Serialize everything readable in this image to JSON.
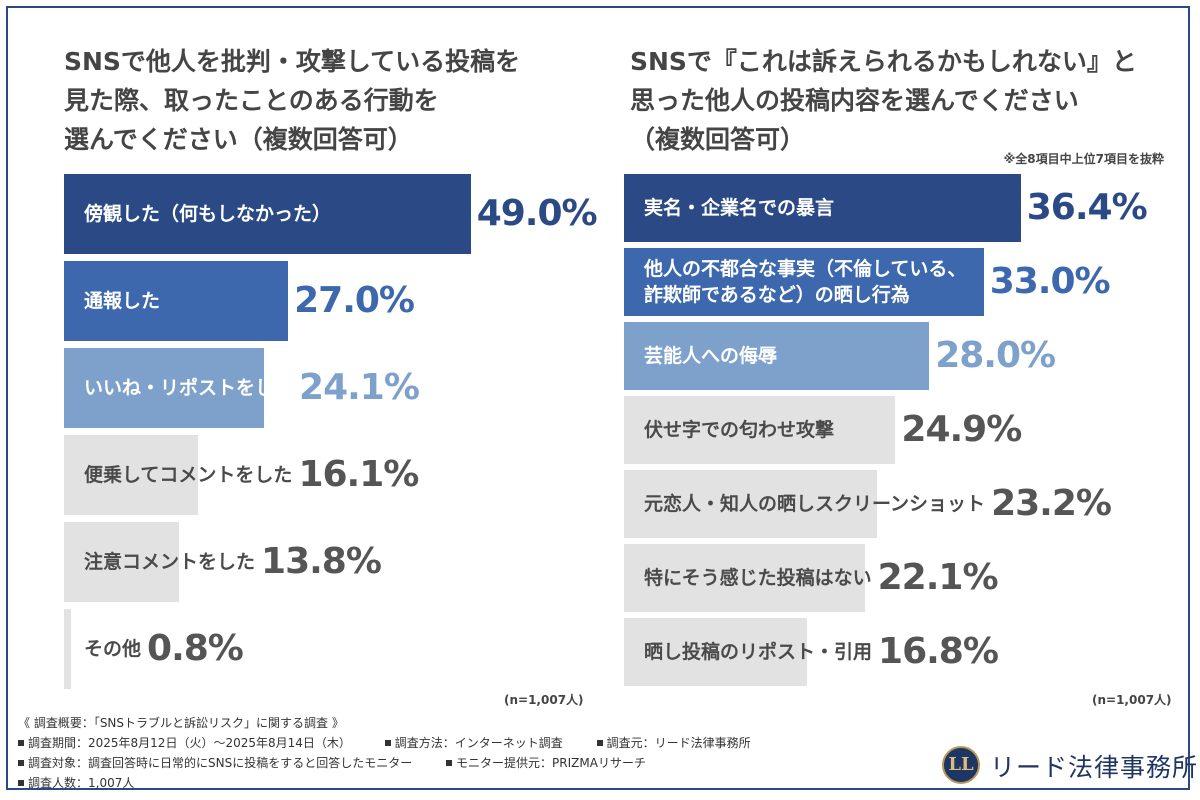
{
  "chart_data": [
    {
      "type": "bar",
      "orientation": "horizontal",
      "title_lines": [
        "SNSで他人を批判・攻撃している投稿を",
        "見た際、取ったことのある行動を",
        "選んでください（複数回答可）"
      ],
      "categories": [
        "傍観した（何もしなかった）",
        "通報した",
        "いいね・リポストをした",
        "便乗してコメントをした",
        "注意コメントをした",
        "その他"
      ],
      "values": [
        49.0,
        27.0,
        24.1,
        16.1,
        13.8,
        0.8
      ],
      "value_labels": [
        "49.0%",
        "27.0%",
        "24.1%",
        "16.1%",
        "13.8%",
        "0.8%"
      ],
      "bar_colors": [
        "#2b4a85",
        "#3d68ad",
        "#7ea1cb",
        "#e2e2e2",
        "#e2e2e2",
        "#e2e2e2"
      ],
      "label_colors": [
        "#ffffff",
        "#ffffff",
        "#ffffff",
        "#4a4a4a",
        "#4a4a4a",
        "#4a4a4a"
      ],
      "value_colors": [
        "#2b4a85",
        "#3d68ad",
        "#7ea1cb",
        "#555555",
        "#555555",
        "#555555"
      ],
      "n_label": "(n=1,007人)",
      "note": "",
      "xlim": [
        0,
        100
      ]
    },
    {
      "type": "bar",
      "orientation": "horizontal",
      "title_lines": [
        "SNSで『これは訴えられるかもしれない』と",
        "思った他人の投稿内容を選んでください",
        "（複数回答可）"
      ],
      "categories": [
        "実名・企業名での暴言",
        "他人の不都合な事実（不倫している、\n詐欺師であるなど）の晒し行為",
        "芸能人への侮辱",
        "伏せ字での匂わせ攻撃",
        "元恋人・知人の晒しスクリーンショット",
        "特にそう感じた投稿はない",
        "晒し投稿のリポスト・引用"
      ],
      "values": [
        36.4,
        33.0,
        28.0,
        24.9,
        23.2,
        22.1,
        16.8
      ],
      "value_labels": [
        "36.4%",
        "33.0%",
        "28.0%",
        "24.9%",
        "23.2%",
        "22.1%",
        "16.8%"
      ],
      "bar_colors": [
        "#2b4a85",
        "#3d68ad",
        "#7ea1cb",
        "#e2e2e2",
        "#e2e2e2",
        "#e2e2e2",
        "#e2e2e2"
      ],
      "label_colors": [
        "#ffffff",
        "#ffffff",
        "#ffffff",
        "#4a4a4a",
        "#4a4a4a",
        "#4a4a4a",
        "#4a4a4a"
      ],
      "value_colors": [
        "#2b4a85",
        "#3d68ad",
        "#7ea1cb",
        "#555555",
        "#555555",
        "#555555",
        "#555555"
      ],
      "n_label": "(n=1,007人)",
      "note": "※全8項目中上位7項目を抜粋",
      "xlim": [
        0,
        100
      ]
    }
  ],
  "footer": {
    "heading": "《 調査概要：「SNSトラブルと訴訟リスク」に関する調査 》",
    "period": "調査期間：2025年8月12日（火）〜2025年8月14日（木）",
    "method": "調査方法：インターネット調査",
    "source": "調査元：リード法律事務所",
    "target": "調査対象：調査回答時に日常的にSNSに投稿をすると回答したモニター",
    "provider": "モニター提供元：PRIZMAリサーチ",
    "count": "調査人数：1,007人"
  },
  "logo": {
    "mark": "LL",
    "name": "リード法律事務所",
    "colors": {
      "navy": "#1f3563",
      "gold": "#b89a58"
    }
  }
}
